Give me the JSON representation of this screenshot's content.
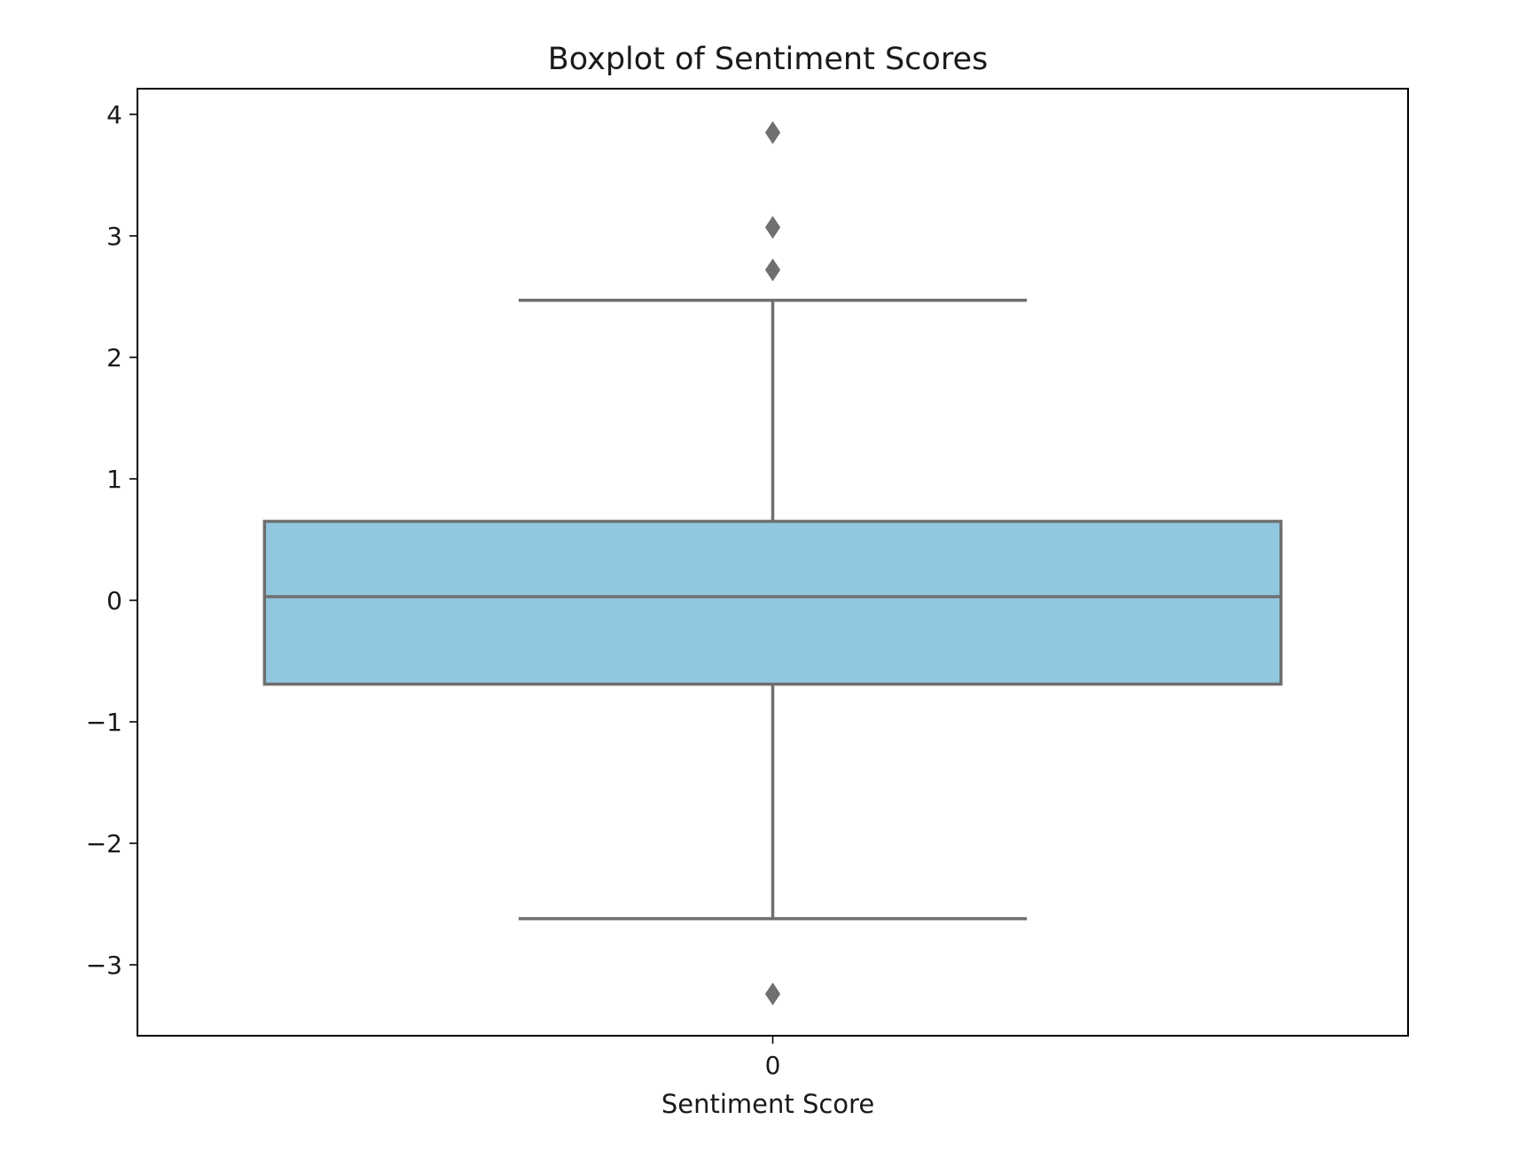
{
  "chart_data": {
    "type": "box",
    "title": "Boxplot of Sentiment Scores",
    "xlabel": "Sentiment Score",
    "ylabel": "",
    "categories": [
      "0"
    ],
    "ylim": [
      -3.6,
      4.2
    ],
    "yticks": [
      -3,
      -2,
      -1,
      0,
      1,
      2,
      3,
      4
    ],
    "ytick_labels": [
      "−3",
      "−2",
      "−1",
      "0",
      "1",
      "2",
      "3",
      "4"
    ],
    "boxes": [
      {
        "category": "0",
        "whisker_low": -2.62,
        "q1": -0.69,
        "median": 0.03,
        "q3": 0.65,
        "whisker_high": 2.47,
        "outliers": [
          3.85,
          3.07,
          2.72,
          -3.24
        ]
      }
    ],
    "grid": false,
    "legend": "none",
    "colors": {
      "box_fill": "#92c8df",
      "box_edge": "#6f6f6f",
      "axes": "#000000",
      "text": "#1a1a1a"
    }
  }
}
